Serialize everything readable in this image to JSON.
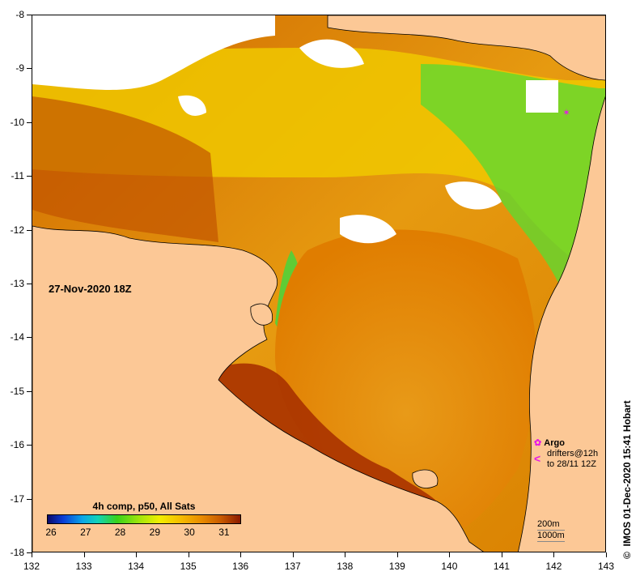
{
  "map": {
    "date_label": "27-Nov-2020 18Z",
    "x_ticks": [
      "132",
      "133",
      "134",
      "135",
      "136",
      "137",
      "138",
      "139",
      "140",
      "141",
      "142",
      "143"
    ],
    "y_ticks": [
      "-8",
      "-9",
      "-10",
      "-11",
      "-12",
      "-13",
      "-14",
      "-15",
      "-16",
      "-17",
      "-18"
    ],
    "colors": {
      "land": "#fcc896",
      "cloud": "#ffffff",
      "sst_hot": "#b33a00",
      "sst_warm": "#e39000",
      "sst_mid": "#f5d000",
      "sst_cool": "#3fd23b"
    }
  },
  "legend": {
    "title": "4h comp, p50, All Sats",
    "labels": [
      "26",
      "27",
      "28",
      "29",
      "30",
      "31"
    ],
    "units_min": 26,
    "units_max": 31
  },
  "argo": {
    "argo_label": "Argo",
    "drifters_line1": "drifters@12h",
    "drifters_line2": "to 28/11 12Z",
    "argo_icon": "circle-icon",
    "drifter_icon": "chevron-left-icon",
    "marker_color": "#e619e6"
  },
  "scale": {
    "line1": "200m",
    "line2": "1000m"
  },
  "credit": "IMOS 01-Dec-2020 15:41 Hobart",
  "credit_icon": "copyright-icon"
}
